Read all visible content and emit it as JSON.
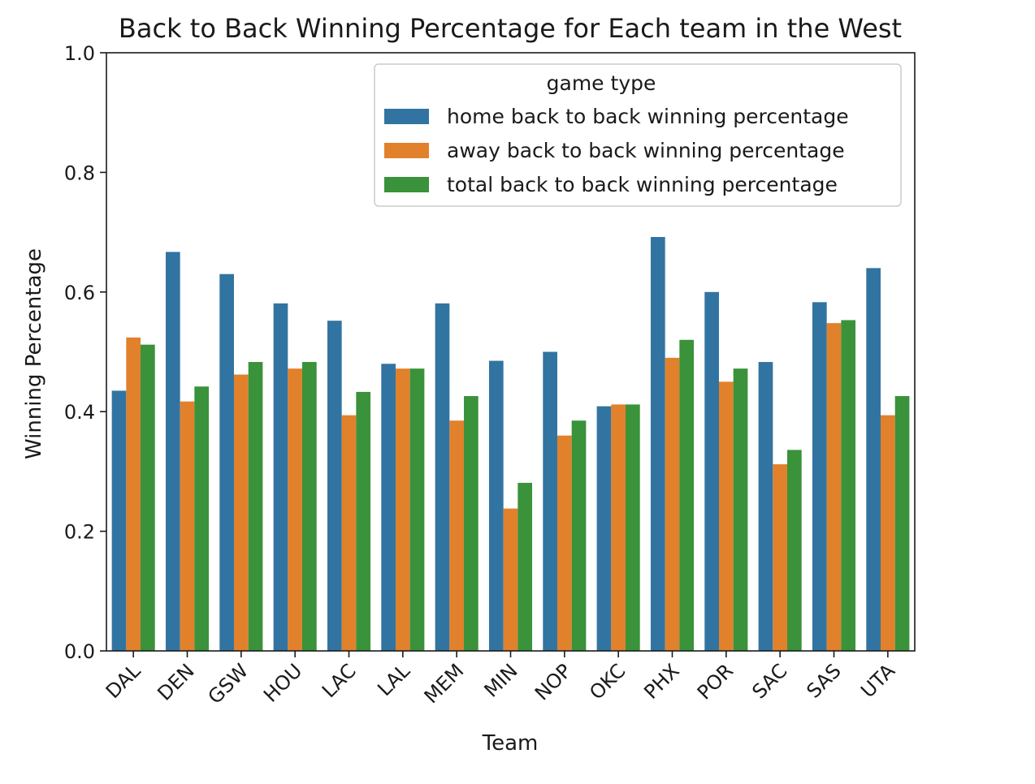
{
  "chart_data": {
    "type": "bar",
    "title": "Back to Back Winning Percentage for Each team in the West",
    "xlabel": "Team",
    "ylabel": "Winning Percentage",
    "ylim": [
      0.0,
      1.0
    ],
    "yticks": [
      "0.0",
      "0.2",
      "0.4",
      "0.6",
      "0.8",
      "1.0"
    ],
    "grid": false,
    "legend": {
      "title": "game type",
      "placement": "top-right"
    },
    "categories": [
      "DAL",
      "DEN",
      "GSW",
      "HOU",
      "LAC",
      "LAL",
      "MEM",
      "MIN",
      "NOP",
      "OKC",
      "PHX",
      "POR",
      "SAC",
      "SAS",
      "UTA"
    ],
    "series": [
      {
        "name": "home back to back winning percentage",
        "color": "#3274a1",
        "values": [
          0.435,
          0.667,
          0.63,
          0.581,
          0.552,
          0.48,
          0.581,
          0.485,
          0.5,
          0.409,
          0.692,
          0.6,
          0.483,
          0.583,
          0.64
        ]
      },
      {
        "name": "away back to back winning percentage",
        "color": "#e1812c",
        "values": [
          0.524,
          0.417,
          0.462,
          0.472,
          0.394,
          0.472,
          0.385,
          0.238,
          0.36,
          0.412,
          0.49,
          0.45,
          0.312,
          0.548,
          0.394
        ]
      },
      {
        "name": "total back to back winning percentage",
        "color": "#3a923a",
        "values": [
          0.512,
          0.442,
          0.483,
          0.483,
          0.433,
          0.472,
          0.426,
          0.281,
          0.385,
          0.412,
          0.52,
          0.472,
          0.336,
          0.553,
          0.426
        ]
      }
    ]
  }
}
